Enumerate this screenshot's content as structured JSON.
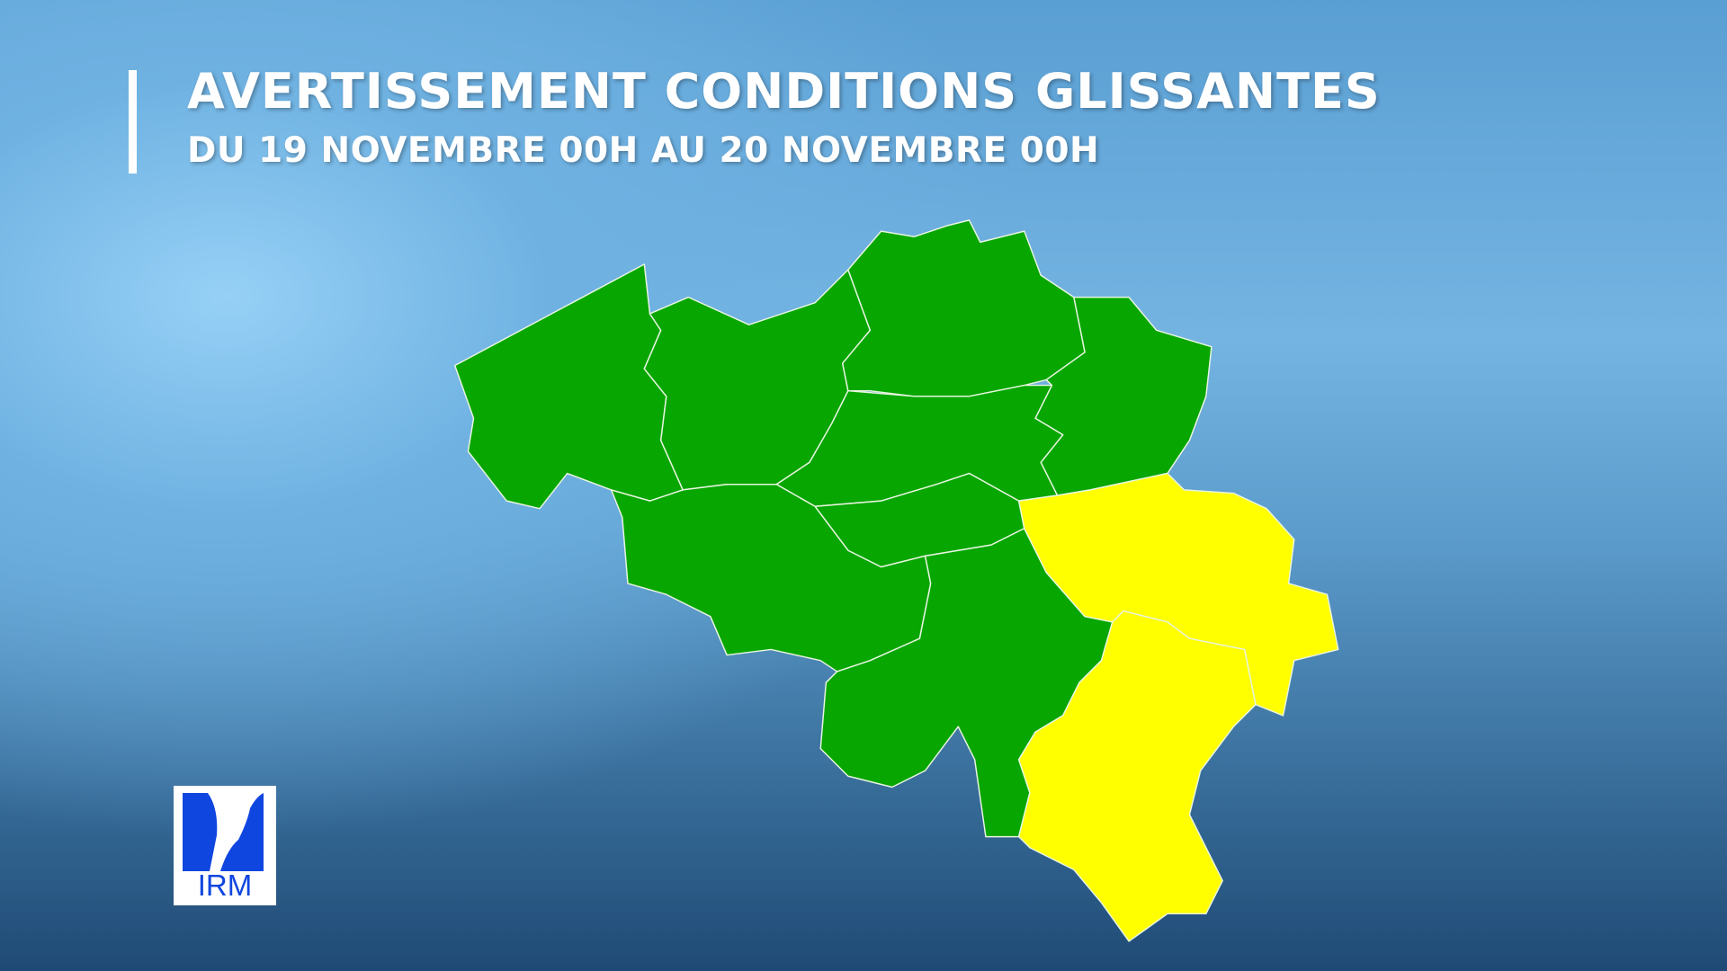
{
  "header": {
    "title": "AVERTISSEMENT CONDITIONS GLISSANTES",
    "subtitle": "DU 19 NOVEMBRE 00H AU 20 NOVEMBRE 00H"
  },
  "map": {
    "colors": {
      "green": "#07a600",
      "yellow": "#ffff00",
      "border": "#e8f5e0"
    },
    "provinces": [
      {
        "id": "west-flanders",
        "level": "green"
      },
      {
        "id": "east-flanders",
        "level": "green"
      },
      {
        "id": "antwerp",
        "level": "green"
      },
      {
        "id": "limburg",
        "level": "green"
      },
      {
        "id": "flemish-brabant",
        "level": "green"
      },
      {
        "id": "walloon-brabant",
        "level": "green"
      },
      {
        "id": "hainaut",
        "level": "green"
      },
      {
        "id": "namur",
        "level": "green"
      },
      {
        "id": "liege",
        "level": "yellow"
      },
      {
        "id": "luxembourg",
        "level": "yellow"
      }
    ]
  },
  "logo": {
    "text": "IRM",
    "color": "#1046e0"
  }
}
